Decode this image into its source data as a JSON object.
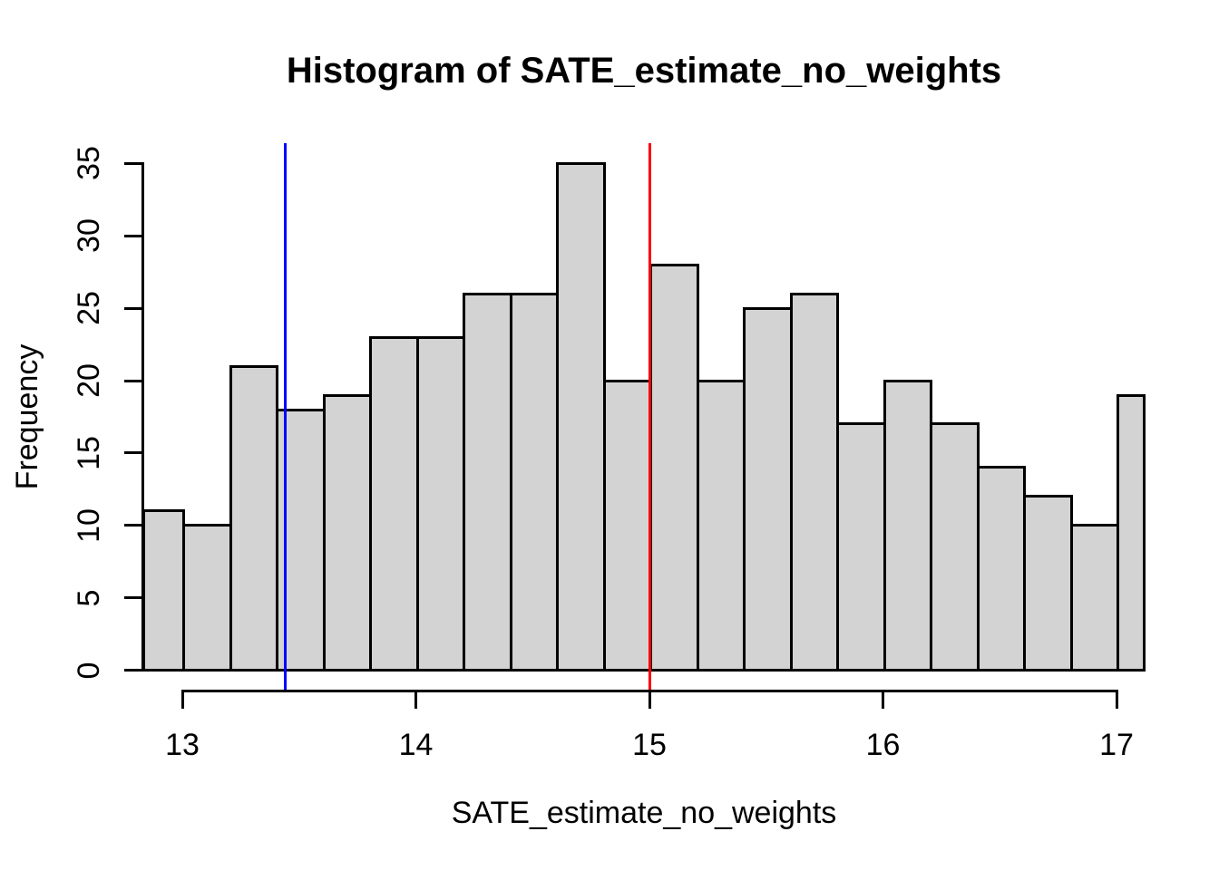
{
  "chart_data": {
    "type": "bar",
    "subtype": "histogram",
    "title": "Histogram of SATE_estimate_no_weights",
    "xlabel": "SATE_estimate_no_weights",
    "ylabel": "Frequency",
    "breaks": [
      12.8,
      13.0,
      13.2,
      13.4,
      13.6,
      13.8,
      14.0,
      14.2,
      14.4,
      14.6,
      14.8,
      15.0,
      15.2,
      15.4,
      15.6,
      15.8,
      16.0,
      16.2,
      16.4,
      16.6,
      16.8,
      17.0,
      17.2
    ],
    "counts": [
      11,
      10,
      21,
      18,
      19,
      23,
      23,
      26,
      26,
      35,
      20,
      28,
      20,
      25,
      26,
      17,
      20,
      17,
      14,
      12,
      10,
      19
    ],
    "x_ticks": [
      13,
      14,
      15,
      16,
      17
    ],
    "x_tick_labels": [
      "13",
      "14",
      "15",
      "16",
      "17"
    ],
    "y_ticks": [
      0,
      5,
      10,
      15,
      20,
      25,
      30,
      35
    ],
    "y_tick_labels": [
      "0",
      "5",
      "10",
      "15",
      "20",
      "25",
      "30",
      "35"
    ],
    "xlim": [
      12.829,
      17.124
    ],
    "ylim": [
      -1.4,
      36.4
    ],
    "grid": false,
    "legend": null,
    "colors": {
      "bar_fill": "#d3d3d3",
      "bar_border": "#000000",
      "axis": "#000000",
      "background": "#ffffff"
    },
    "vlines": [
      {
        "x": 13.44,
        "color": "#0000ff",
        "name": "blue-reference-line"
      },
      {
        "x": 15.0,
        "color": "#ff0000",
        "name": "red-reference-line"
      }
    ]
  }
}
